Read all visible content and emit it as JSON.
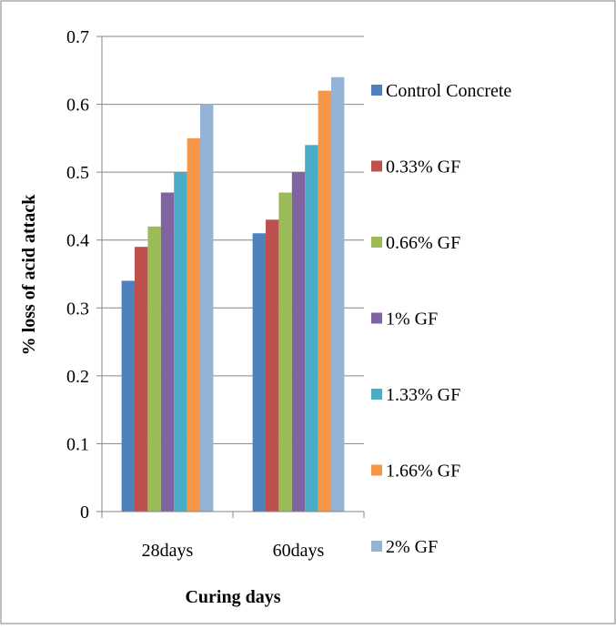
{
  "chart_data": {
    "type": "bar",
    "title": "",
    "xlabel": "Curing days",
    "ylabel": "% loss of acid attack",
    "categories": [
      "28days",
      "60days"
    ],
    "ylim": [
      0,
      0.7
    ],
    "yticks": [
      "0",
      "0.1",
      "0.2",
      "0.3",
      "0.4",
      "0.5",
      "0.6",
      "0.7"
    ],
    "grid": true,
    "legend_position": "right",
    "series": [
      {
        "name": "Control Concrete",
        "color": "#4F81BD",
        "values": [
          0.34,
          0.41
        ]
      },
      {
        "name": "0.33% GF",
        "color": "#C0504D",
        "values": [
          0.39,
          0.43
        ]
      },
      {
        "name": "0.66% GF",
        "color": "#9BBB59",
        "values": [
          0.42,
          0.47
        ]
      },
      {
        "name": "1% GF",
        "color": "#8064A2",
        "values": [
          0.47,
          0.5
        ]
      },
      {
        "name": "1.33% GF",
        "color": "#4BACC6",
        "values": [
          0.5,
          0.54
        ]
      },
      {
        "name": "1.66% GF",
        "color": "#F79646",
        "values": [
          0.55,
          0.62
        ]
      },
      {
        "name": "2% GF",
        "color": "#95B3D7",
        "values": [
          0.6,
          0.64
        ]
      }
    ]
  }
}
